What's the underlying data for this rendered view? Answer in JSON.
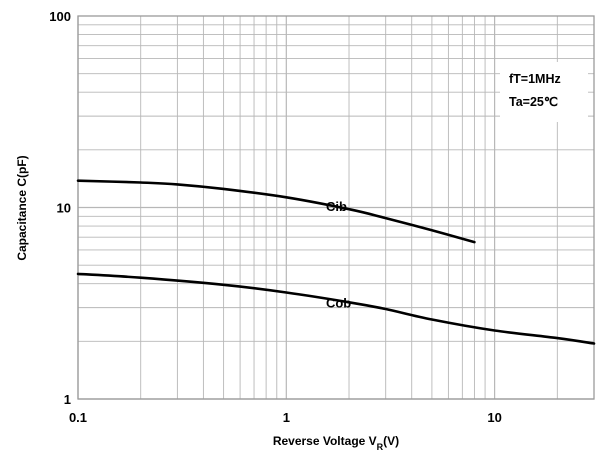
{
  "chart_data": {
    "type": "line",
    "x_scale": "log",
    "y_scale": "log",
    "xlim": [
      0.1,
      30
    ],
    "ylim": [
      1,
      100
    ],
    "grid": true,
    "xlabel_prefix": "Reverse Voltage  V",
    "xlabel_subscript": "R",
    "xlabel_suffix": "(V)",
    "ylabel": "Capacitance  C(pF)",
    "x_ticks": [
      {
        "value": 0.1,
        "label": "0.1"
      },
      {
        "value": 1,
        "label": "1"
      },
      {
        "value": 10,
        "label": "10"
      }
    ],
    "y_ticks": [
      {
        "value": 1,
        "label": "1"
      },
      {
        "value": 10,
        "label": "10"
      },
      {
        "value": 100,
        "label": "100"
      }
    ],
    "conditions": [
      "fT=1MHz",
      "Ta=25℃"
    ],
    "series": [
      {
        "name": "Cib",
        "points": [
          [
            0.1,
            13.8
          ],
          [
            0.2,
            13.5
          ],
          [
            0.3,
            13.2
          ],
          [
            0.5,
            12.5
          ],
          [
            1,
            11.3
          ],
          [
            2,
            9.8
          ],
          [
            3,
            8.8
          ],
          [
            5,
            7.6
          ],
          [
            8,
            6.6
          ]
        ],
        "label_at": [
          1.55,
          9.6
        ]
      },
      {
        "name": "Cob",
        "points": [
          [
            0.1,
            4.5
          ],
          [
            0.2,
            4.3
          ],
          [
            0.5,
            3.95
          ],
          [
            1,
            3.6
          ],
          [
            2,
            3.2
          ],
          [
            3,
            2.95
          ],
          [
            5,
            2.6
          ],
          [
            10,
            2.28
          ],
          [
            20,
            2.08
          ],
          [
            30,
            1.95
          ]
        ],
        "label_at": [
          1.55,
          3.0
        ]
      }
    ],
    "colors": {
      "line": "#000000",
      "grid": "#b7b7b7",
      "frame": "#9a9a9a"
    }
  }
}
